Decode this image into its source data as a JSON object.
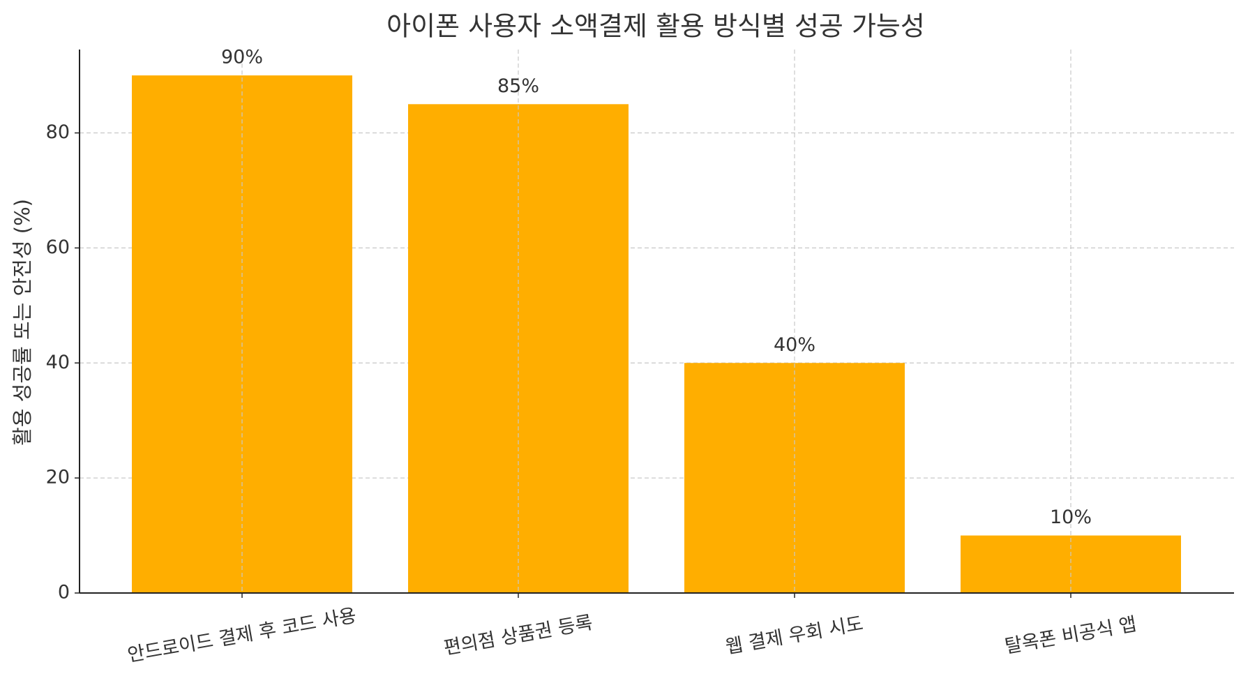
{
  "chart_data": {
    "type": "bar",
    "title": "아이폰 사용자 소액결제 활용 방식별 성공 가능성",
    "y_label": "활용 성공률 또는 안전성 (%)",
    "categories": [
      "안드로이드 결제 후 코드 사용",
      "편의점 상품권 등록",
      "웹 결제 우회 시도",
      "탈옥폰 비공식 앱"
    ],
    "values": [
      90,
      85,
      40,
      10
    ],
    "value_labels": [
      "90%",
      "85%",
      "40%",
      "10%"
    ],
    "color": "#ffae00",
    "ylim": [
      0,
      94.5
    ],
    "yticks": [
      0,
      20,
      40,
      60,
      80
    ],
    "grid": true
  }
}
